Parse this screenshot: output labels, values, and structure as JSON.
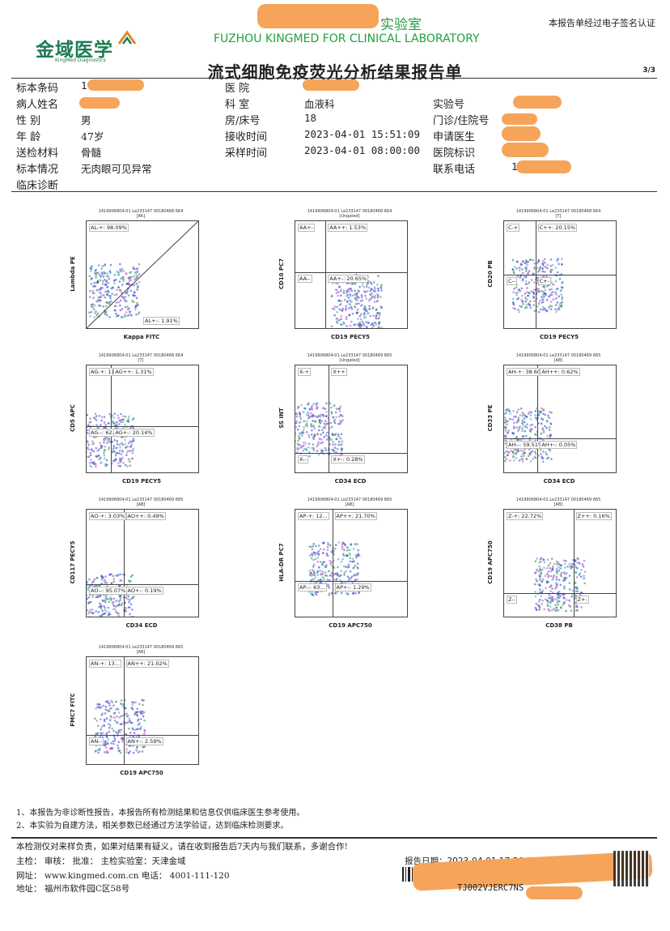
{
  "header": {
    "logo_text": "金域医学",
    "logo_sub": "KingMed Diagnostics",
    "lab_name_cn_suffix": "实验室",
    "lab_name_en": "FUZHOU KINGMED FOR CLINICAL LABORATORY",
    "signature_note": "本报告单经过电子签名认证",
    "report_title": "流式细胞免疫荧光分析结果报告单",
    "page_no": "3/3"
  },
  "info": {
    "rows": [
      {
        "l1": "标本条码",
        "v1": "1",
        "l2": "医    院",
        "v2": "",
        "l3": "",
        "v3": ""
      },
      {
        "l1": "病人姓名",
        "v1": "",
        "l2": "科    室",
        "v2": "血液科",
        "l3": "实验号",
        "v3": ""
      },
      {
        "l1": "性    别",
        "v1": "男",
        "l2": "房/床号",
        "v2": "18",
        "l3": "门诊/住院号",
        "v3": ""
      },
      {
        "l1": "年    龄",
        "v1": "47岁",
        "l2": "接收时间",
        "v2": "2023-04-01 15:51:09",
        "l3": "申请医生",
        "v3": ""
      },
      {
        "l1": "送检材料",
        "v1": "骨髓",
        "l2": "采样时间",
        "v2": "2023-04-01 08:00:00",
        "l3": "医院标识",
        "v3": ""
      },
      {
        "l1": "标本情况",
        "v1": "无肉眼可见异常",
        "l2": "",
        "v2": "",
        "l3": "联系电话",
        "v3": "1"
      },
      {
        "l1": "临床诊断",
        "v1": "",
        "l2": "",
        "v2": "",
        "l3": "",
        "v3": ""
      }
    ]
  },
  "plots": [
    {
      "hdr": "1419906804-01 Le233147 00180468 664",
      "sub": "[AK]",
      "x": "Kappa FITC",
      "y": "Lambda PE",
      "q": [
        "AL-+: 98.09%",
        "AL+-: 1.91%"
      ]
    },
    {
      "hdr": "1419906804-01 Le233147 00180468 664",
      "sub": "[Ungated]",
      "x": "CD19 PECY5",
      "y": "CD10 PC7",
      "q": [
        "AA+-",
        "AA++: 1.53%",
        "AA--",
        "AA+-: 20.65%"
      ]
    },
    {
      "hdr": "1419906804-01 Le233147 00180468 664",
      "sub": "[T]",
      "x": "CD19 PECY5",
      "y": "CD20 PB",
      "q": [
        "C-+",
        "C++: 20.15%",
        "C--",
        "C+-"
      ]
    },
    {
      "hdr": "1419906804-01 Le233147 00180468 664",
      "sub": "[T]",
      "x": "CD19 PECY5",
      "y": "CD5 APC",
      "q": [
        "AG-+: 11.85%",
        "AG++: 1.31%",
        "AG--: 62.71%",
        "AG+-: 20.14%"
      ]
    },
    {
      "hdr": "1419906804-01 Le233147 00180469 665",
      "sub": "[Ungated]",
      "x": "CD34 ECD",
      "y": "SS INT",
      "q": [
        "X-+",
        "X++",
        "X--",
        "X+-: 0.28%"
      ]
    },
    {
      "hdr": "1419906804-01 Le233147 00180469 665",
      "sub": "[AB]",
      "x": "CD34 ECD",
      "y": "CD33 PE",
      "q": [
        "AH-+: 38.60%",
        "AH++: 0.62%",
        "AH--: 59.51%",
        "AH+-: 0.05%"
      ]
    },
    {
      "hdr": "1419906804-01 Le233147 00180469 665",
      "sub": "[AB]",
      "x": "CD34 ECD",
      "y": "CD117 PECY5",
      "q": [
        "AO-+: 3.03%",
        "AO++: 0.49%",
        "AO--: 95.07%",
        "AO+-: 0.19%"
      ]
    },
    {
      "hdr": "1419906804-01 Le233147 00180469 665",
      "sub": "[AB]",
      "x": "CD19 APC750",
      "y": "HLA-DR PC7",
      "q": [
        "AP-+: 12...",
        "AP++: 21.70%",
        "AP--: 63...",
        "AP+-: 1.29%"
      ]
    },
    {
      "hdr": "1419906804-01 Le233147 00180469 665",
      "sub": "[AB]",
      "x": "CD38 PB",
      "y": "CD19 APC750",
      "q": [
        "Z-+: 22.72%",
        "Z++: 0.16%",
        "Z--",
        "Z+-"
      ]
    },
    {
      "hdr": "1419906804-01 Le233147 00180469 665",
      "sub": "[AB]",
      "x": "CD19 APC750",
      "y": "FMC7 FITC",
      "q": [
        "AN-+: 13...",
        "AN++: 21.02%",
        "AN--",
        "AN+-: 2.59%"
      ]
    }
  ],
  "notes": [
    "1、本报告为非诊断性报告，本报告所有检测结果和信息仅供临床医生参考使用。",
    "2、本实验为自建方法，相关参数已经通过方法学验证，达到临床检测要求。"
  ],
  "footer": {
    "disclaimer": "本检测仅对来样负责，如果对结果有疑义，请在收到报告后7天内与我们联系，多谢合作!",
    "line1": "主检：         审核：         批准：         主检实验室：天津金域",
    "report_date_label": "报告日期：2023-04-01 17:36:00",
    "website": "网址：  www.kingmed.com.cn   电话： 4001-111-120",
    "address": "地址：  福州市软件园C区58号",
    "code": "TJ002VJERC7NS"
  },
  "colors": {
    "brand_green": "#1f7a53",
    "lab_green": "#21a13e",
    "redact": "#f6a45a"
  }
}
